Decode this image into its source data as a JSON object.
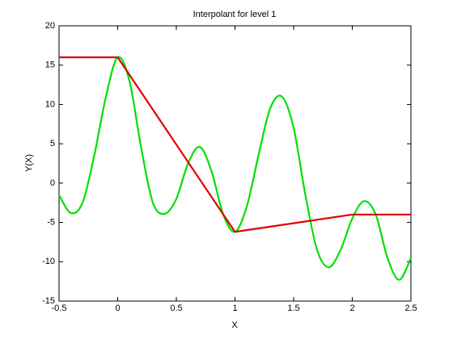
{
  "chart_data": {
    "type": "line",
    "title": "Interpolant for level 1",
    "x_label": "X",
    "y_label": "Y(X)",
    "xlim": [
      -0.5,
      2.5
    ],
    "ylim": [
      -15,
      20
    ],
    "xticks": [
      -0.5,
      0,
      0.5,
      1,
      1.5,
      2,
      2.5
    ],
    "yticks": [
      -15,
      -10,
      -5,
      0,
      5,
      10,
      15,
      20
    ],
    "series": [
      {
        "color": "#00e000",
        "smooth": true,
        "x": [
          -0.5,
          -0.4,
          -0.3,
          -0.2,
          -0.1,
          0,
          0.1,
          0.2,
          0.3,
          0.4,
          0.5,
          0.6,
          0.7,
          0.8,
          0.9,
          1.0,
          1.1,
          1.2,
          1.3,
          1.4,
          1.5,
          1.6,
          1.7,
          1.8,
          1.9,
          2.0,
          2.1,
          2.2,
          2.3,
          2.4,
          2.5
        ],
        "values": [
          -1.5,
          -3.8,
          -2.5,
          3.5,
          11,
          16,
          13,
          4.5,
          -2.5,
          -3.9,
          -2,
          2.5,
          4.6,
          1.5,
          -4,
          -6.2,
          -3,
          3.5,
          9.5,
          11,
          7,
          -1.5,
          -8.5,
          -10.7,
          -8.5,
          -4.5,
          -2.3,
          -4,
          -9.5,
          -12.3,
          -9.5
        ]
      },
      {
        "color": "#e00000",
        "smooth": false,
        "x": [
          -0.5,
          0,
          1,
          2,
          2.5
        ],
        "values": [
          16,
          16,
          -6.2,
          -4,
          -4
        ]
      }
    ]
  }
}
